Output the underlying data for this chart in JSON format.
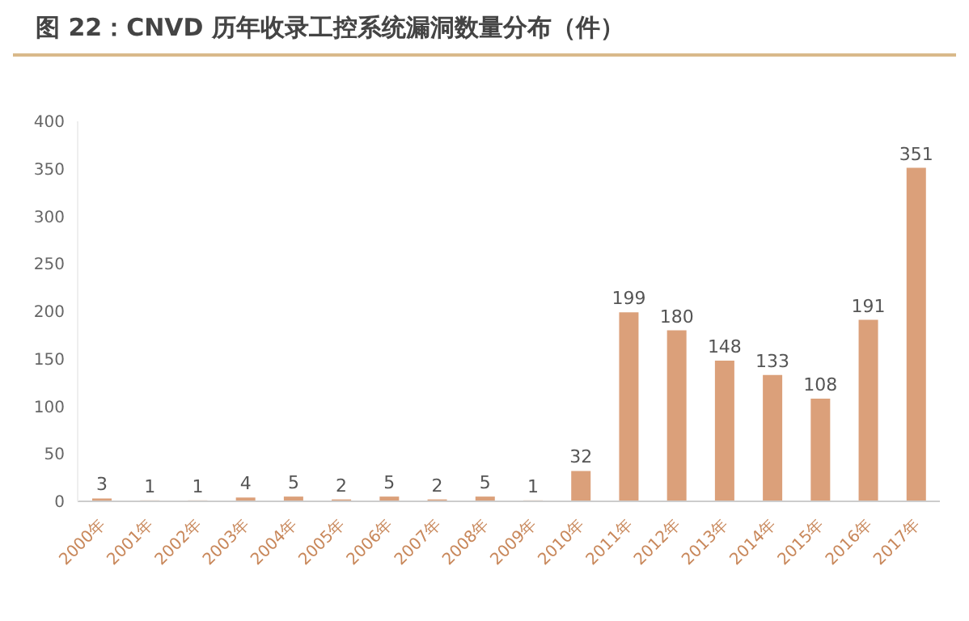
{
  "chart_data": {
    "type": "bar",
    "title": "图 22：CNVD 历年收录工控系统漏洞数量分布（件）",
    "categories": [
      "2000年",
      "2001年",
      "2002年",
      "2003年",
      "2004年",
      "2005年",
      "2006年",
      "2007年",
      "2008年",
      "2009年",
      "2010年",
      "2011年",
      "2012年",
      "2013年",
      "2014年",
      "2015年",
      "2016年",
      "2017年"
    ],
    "values": [
      3,
      1,
      1,
      4,
      5,
      2,
      5,
      2,
      5,
      1,
      32,
      199,
      180,
      148,
      133,
      108,
      191,
      351
    ],
    "color": "#dba07a",
    "ylim": [
      0,
      400
    ],
    "yticks": [
      0,
      50,
      100,
      150,
      200,
      250,
      300,
      350,
      400
    ],
    "grid": false,
    "data_labels": true
  }
}
